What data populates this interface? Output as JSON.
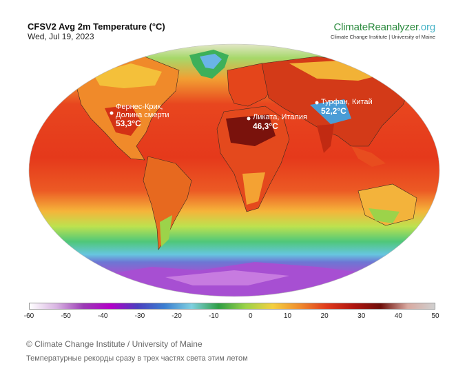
{
  "header": {
    "title": "CFSV2 Avg 2m Temperature (°C)",
    "date": "Wed, Jul 19, 2023"
  },
  "brand": {
    "name": "ClimateReanalyzer",
    "tld": ".org",
    "tagline": "Climate Change Institute | University of Maine"
  },
  "markers": [
    {
      "label_lines": [
        "Фернес-Крик,",
        "Долина смерти"
      ],
      "value": "53,3°C"
    },
    {
      "label_lines": [
        "Ликата, Италия"
      ],
      "value": "46,3°C"
    },
    {
      "label_lines": [
        "Турфан, Китай"
      ],
      "value": "52,2°C"
    }
  ],
  "scale": {
    "unit_min": -60,
    "unit_max": 50,
    "ticks": [
      "-60",
      "-50",
      "-40",
      "-30",
      "-20",
      "-10",
      "0",
      "10",
      "20",
      "30",
      "40",
      "50"
    ],
    "colors": [
      "#ffffff",
      "#d8b4e2",
      "#9b3bb5",
      "#b300c8",
      "#4a3fbf",
      "#3c7fd1",
      "#7fd0e0",
      "#2f9e44",
      "#9bd348",
      "#f4d03f",
      "#f08c2d",
      "#e03a1c",
      "#b0150f",
      "#6e0f0a",
      "#d9a9a0",
      "#d0d0d0"
    ]
  },
  "footer": {
    "credit": "© Climate Change Institute / University of Maine",
    "caption": "Температурные рекорды сразу в трех частях света этим летом"
  }
}
